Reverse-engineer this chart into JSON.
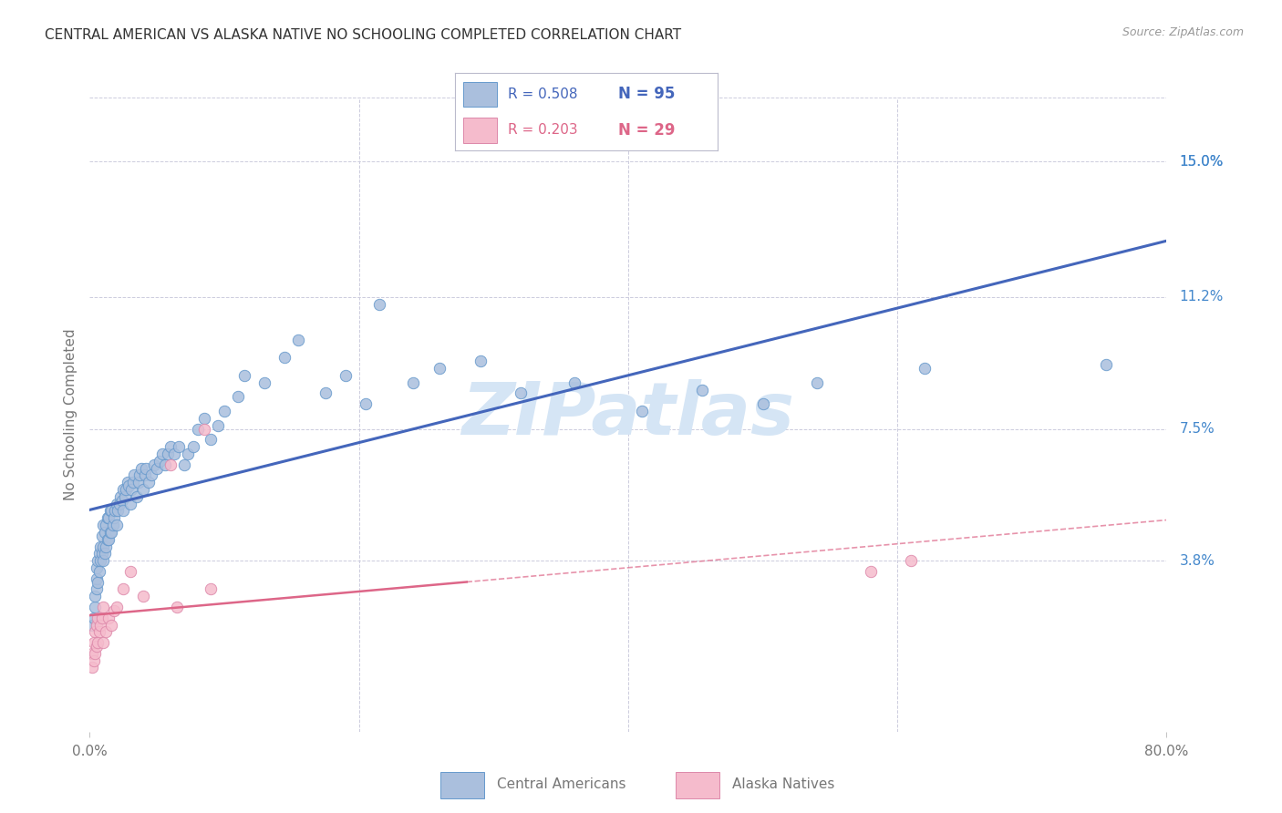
{
  "title": "CENTRAL AMERICAN VS ALASKA NATIVE NO SCHOOLING COMPLETED CORRELATION CHART",
  "source": "Source: ZipAtlas.com",
  "ylabel": "No Schooling Completed",
  "y_tick_values": [
    0.038,
    0.075,
    0.112,
    0.15
  ],
  "y_tick_labels": [
    "3.8%",
    "7.5%",
    "11.2%",
    "15.0%"
  ],
  "xlim": [
    0.0,
    0.8
  ],
  "ylim": [
    -0.01,
    0.168
  ],
  "legend_label1": "Central Americans",
  "legend_label2": "Alaska Natives",
  "r1": 0.508,
  "n1": 95,
  "r2": 0.203,
  "n2": 29,
  "blue_fill": "#AABFDD",
  "blue_edge": "#6699CC",
  "blue_line": "#4466BB",
  "pink_fill": "#F5BBCC",
  "pink_edge": "#DD88AA",
  "pink_line": "#DD6688",
  "watermark": "ZIPatlas",
  "watermark_color": "#D5E5F5",
  "bg": "#FFFFFF",
  "grid_color": "#CCCCDD",
  "title_color": "#333333",
  "axis_label_color": "#777777",
  "right_tick_color": "#4488CC",
  "source_color": "#999999",
  "blue_x": [
    0.002,
    0.003,
    0.004,
    0.004,
    0.005,
    0.005,
    0.005,
    0.006,
    0.006,
    0.007,
    0.007,
    0.008,
    0.008,
    0.009,
    0.009,
    0.01,
    0.01,
    0.01,
    0.011,
    0.011,
    0.012,
    0.012,
    0.013,
    0.013,
    0.014,
    0.014,
    0.015,
    0.015,
    0.016,
    0.016,
    0.017,
    0.018,
    0.019,
    0.02,
    0.02,
    0.021,
    0.022,
    0.023,
    0.024,
    0.025,
    0.025,
    0.026,
    0.027,
    0.028,
    0.029,
    0.03,
    0.031,
    0.032,
    0.033,
    0.035,
    0.036,
    0.037,
    0.038,
    0.04,
    0.041,
    0.042,
    0.044,
    0.046,
    0.048,
    0.05,
    0.052,
    0.054,
    0.056,
    0.058,
    0.06,
    0.063,
    0.066,
    0.07,
    0.073,
    0.077,
    0.08,
    0.085,
    0.09,
    0.095,
    0.1,
    0.11,
    0.115,
    0.13,
    0.145,
    0.155,
    0.175,
    0.19,
    0.205,
    0.215,
    0.24,
    0.26,
    0.29,
    0.32,
    0.36,
    0.41,
    0.455,
    0.5,
    0.54,
    0.62,
    0.755
  ],
  "blue_y": [
    0.02,
    0.022,
    0.025,
    0.028,
    0.03,
    0.033,
    0.036,
    0.032,
    0.038,
    0.035,
    0.04,
    0.038,
    0.042,
    0.04,
    0.045,
    0.038,
    0.042,
    0.048,
    0.04,
    0.046,
    0.042,
    0.048,
    0.044,
    0.05,
    0.044,
    0.05,
    0.046,
    0.052,
    0.046,
    0.052,
    0.048,
    0.05,
    0.052,
    0.048,
    0.054,
    0.052,
    0.054,
    0.056,
    0.055,
    0.052,
    0.058,
    0.056,
    0.058,
    0.06,
    0.059,
    0.054,
    0.058,
    0.06,
    0.062,
    0.056,
    0.06,
    0.062,
    0.064,
    0.058,
    0.062,
    0.064,
    0.06,
    0.062,
    0.065,
    0.064,
    0.066,
    0.068,
    0.065,
    0.068,
    0.07,
    0.068,
    0.07,
    0.065,
    0.068,
    0.07,
    0.075,
    0.078,
    0.072,
    0.076,
    0.08,
    0.084,
    0.09,
    0.088,
    0.095,
    0.1,
    0.085,
    0.09,
    0.082,
    0.11,
    0.088,
    0.092,
    0.094,
    0.085,
    0.088,
    0.08,
    0.086,
    0.082,
    0.088,
    0.092,
    0.093
  ],
  "pink_x": [
    0.002,
    0.002,
    0.003,
    0.003,
    0.004,
    0.004,
    0.005,
    0.005,
    0.006,
    0.006,
    0.007,
    0.008,
    0.009,
    0.01,
    0.01,
    0.012,
    0.014,
    0.016,
    0.018,
    0.02,
    0.025,
    0.03,
    0.04,
    0.06,
    0.065,
    0.085,
    0.09,
    0.58,
    0.61
  ],
  "pink_y": [
    0.008,
    0.012,
    0.01,
    0.015,
    0.012,
    0.018,
    0.014,
    0.02,
    0.015,
    0.022,
    0.018,
    0.02,
    0.022,
    0.015,
    0.025,
    0.018,
    0.022,
    0.02,
    0.024,
    0.025,
    0.03,
    0.035,
    0.028,
    0.065,
    0.025,
    0.075,
    0.03,
    0.035,
    0.038
  ]
}
